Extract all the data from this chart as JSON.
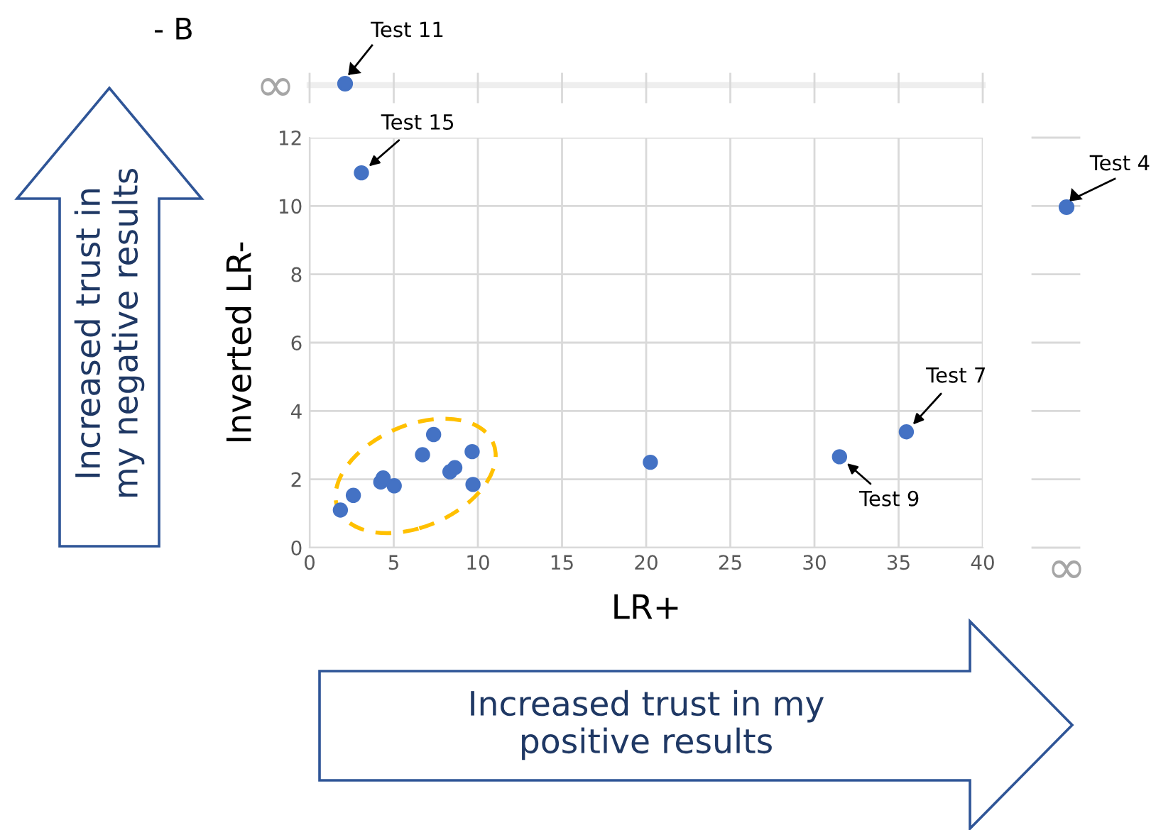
{
  "chart_data": {
    "type": "scatter",
    "xlabel": "LR+",
    "ylabel": "Inverted LR-",
    "color": "#4472c4",
    "marker": "circle",
    "grid": true,
    "x": [
      1.83,
      2.6,
      4.23,
      4.37,
      5.03,
      6.71,
      7.37,
      8.34,
      8.63,
      9.66,
      9.71,
      20.25,
      31.49,
      35.46,
      3.08
    ],
    "values": [
      1.1,
      1.53,
      1.92,
      2.04,
      1.81,
      2.72,
      3.31,
      2.22,
      2.34,
      2.81,
      1.85,
      2.5,
      2.66,
      3.39,
      10.97
    ],
    "xlim": [
      0,
      40
    ],
    "ylim": [
      0,
      12
    ],
    "xticks": [
      0,
      5,
      10,
      15,
      20,
      25,
      30,
      35,
      40
    ],
    "yticks": [
      0,
      2,
      4,
      6,
      8,
      10,
      12
    ],
    "annotations": [
      {
        "text": "Test 15",
        "x": 3.08,
        "y": 10.97
      },
      {
        "text": "Test 9",
        "x": 31.49,
        "y": 2.66
      },
      {
        "text": "Test 7",
        "x": 35.46,
        "y": 3.39
      },
      "- B",
      "Increased trust in\nmy negative results",
      "Increased trust in my\npositive results",
      "∞",
      "∞",
      "Test 11",
      "Test 4"
    ]
  }
}
